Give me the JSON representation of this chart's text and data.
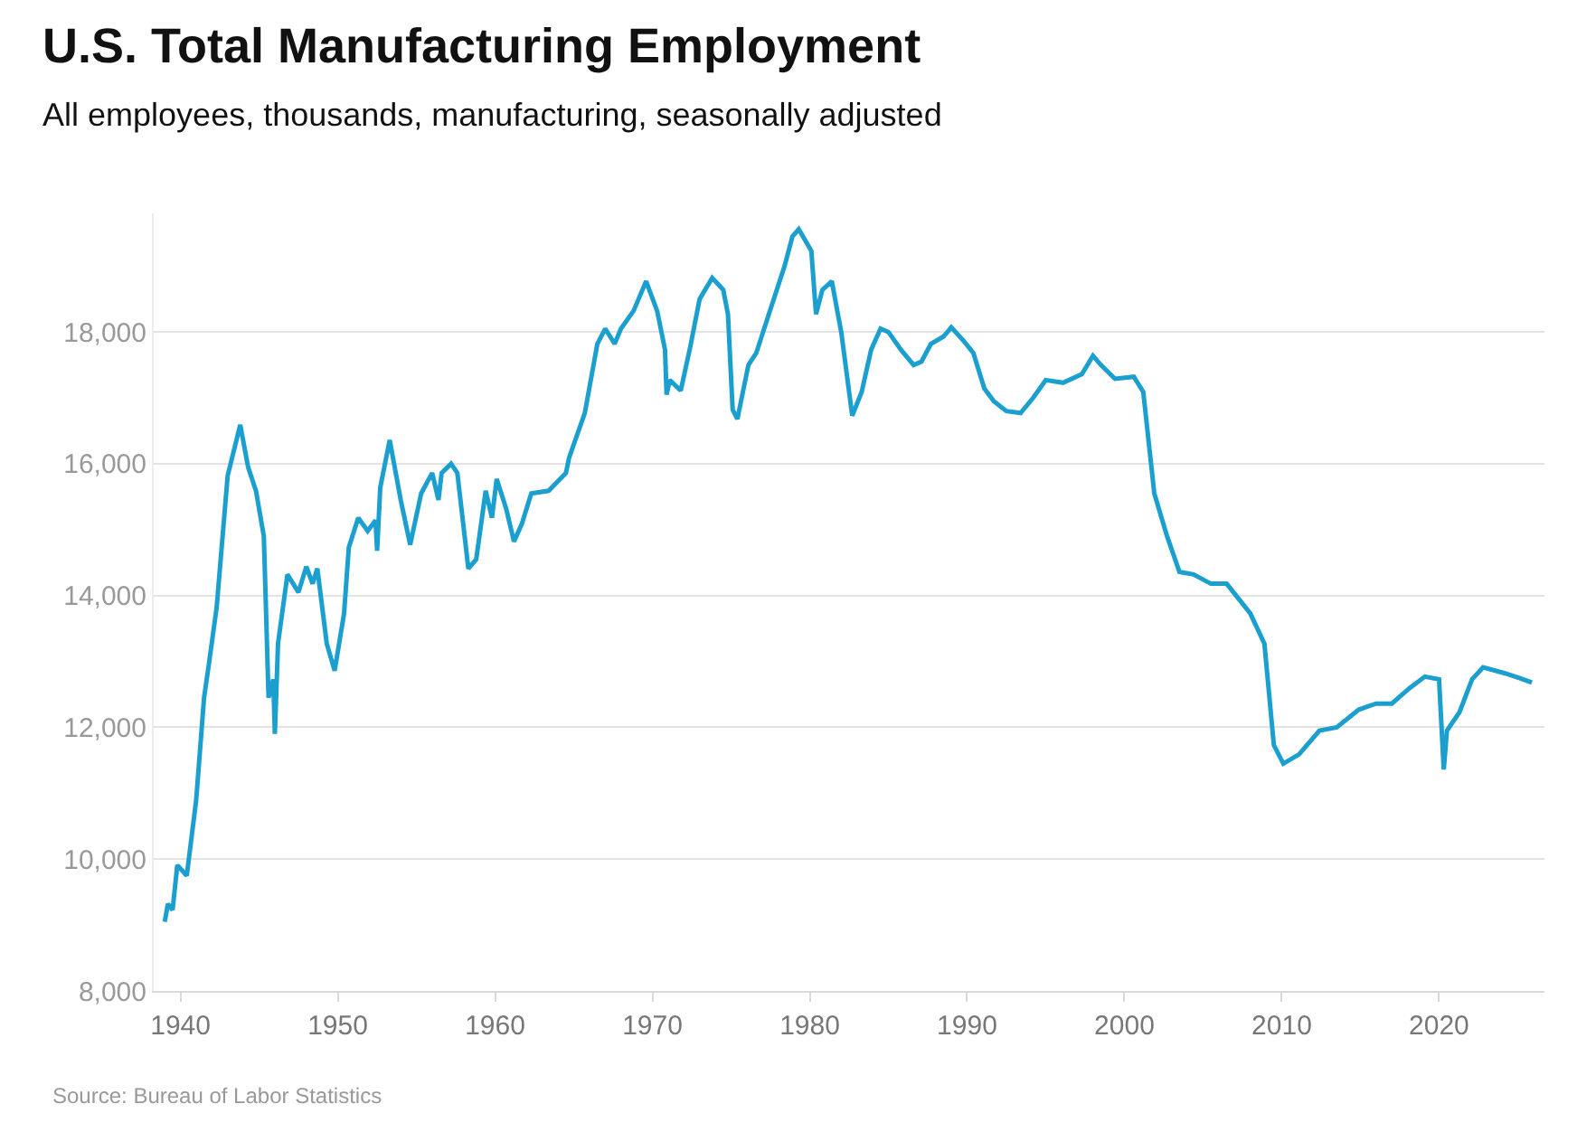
{
  "chart_data": {
    "type": "line",
    "title": "U.S. Total Manufacturing Employment",
    "subtitle": "All employees, thousands, manufacturing, seasonally adjusted",
    "annotations": [
      "Source: Bureau of Labor Statistics"
    ],
    "series": [
      {
        "color": "#1b9fcf",
        "x": [
          1939.0,
          1939.2,
          1939.5,
          1939.8,
          1940.4,
          1941.0,
          1941.5,
          1941.8,
          1942.3,
          1943.0,
          1943.8,
          1944.3,
          1944.8,
          1945.3,
          1945.6,
          1945.9,
          1946.0,
          1946.2,
          1946.8,
          1947.5,
          1948.0,
          1948.4,
          1948.7,
          1949.3,
          1949.8,
          1950.4,
          1950.7,
          1951.3,
          1951.9,
          1952.4,
          1952.5,
          1952.7,
          1953.3,
          1954.0,
          1954.6,
          1955.3,
          1956.0,
          1956.4,
          1956.6,
          1957.2,
          1957.6,
          1958.3,
          1958.8,
          1959.4,
          1959.8,
          1960.1,
          1960.7,
          1961.2,
          1961.7,
          1962.3,
          1963.4,
          1964.5,
          1964.7,
          1965.7,
          1966.5,
          1967.0,
          1967.6,
          1968.0,
          1968.8,
          1969.6,
          1970.3,
          1970.8,
          1970.9,
          1971.1,
          1971.8,
          1972.4,
          1973.0,
          1973.8,
          1974.5,
          1974.8,
          1975.1,
          1975.4,
          1976.1,
          1976.6,
          1977.4,
          1978.4,
          1978.9,
          1979.3,
          1980.1,
          1980.4,
          1980.8,
          1981.4,
          1982.0,
          1982.7,
          1983.3,
          1983.9,
          1984.5,
          1985.0,
          1985.8,
          1986.6,
          1987.1,
          1987.7,
          1988.5,
          1989.0,
          1989.8,
          1990.4,
          1991.1,
          1991.7,
          1992.5,
          1993.4,
          1994.2,
          1995.0,
          1996.1,
          1997.3,
          1998.0,
          1998.5,
          1999.4,
          2000.6,
          2001.2,
          2001.9,
          2002.7,
          2003.5,
          2004.4,
          2005.5,
          2006.5,
          2008.0,
          2008.9,
          2009.5,
          2010.1,
          2011.1,
          2012.4,
          2013.5,
          2014.9,
          2016.0,
          2017.0,
          2018.1,
          2019.1,
          2020.0,
          2020.3,
          2020.5,
          2021.3,
          2022.1,
          2022.8,
          2024.2,
          2025.1,
          2025.9
        ],
        "values": [
          9050,
          9320,
          9230,
          9910,
          9750,
          10900,
          12450,
          12950,
          13820,
          15820,
          16590,
          15950,
          15590,
          14900,
          12450,
          12730,
          11900,
          13270,
          14320,
          14050,
          14440,
          14180,
          14410,
          13270,
          12860,
          13730,
          14730,
          15180,
          14980,
          15140,
          14680,
          15640,
          16360,
          15450,
          14770,
          15550,
          15860,
          15450,
          15860,
          16000,
          15860,
          14410,
          14550,
          15590,
          15180,
          15770,
          15320,
          14820,
          15090,
          15550,
          15590,
          15860,
          16090,
          16770,
          17820,
          18050,
          17820,
          18050,
          18320,
          18770,
          18320,
          17730,
          17050,
          17270,
          17110,
          17770,
          18500,
          18820,
          18640,
          18270,
          16820,
          16680,
          17500,
          17680,
          18270,
          19000,
          19450,
          19560,
          19230,
          18270,
          18640,
          18770,
          18000,
          16730,
          17090,
          17730,
          18050,
          18000,
          17730,
          17500,
          17550,
          17820,
          17930,
          18070,
          17860,
          17680,
          17140,
          16950,
          16800,
          16770,
          17000,
          17270,
          17230,
          17360,
          17640,
          17500,
          17290,
          17320,
          17090,
          15550,
          14910,
          14360,
          14320,
          14180,
          14180,
          13730,
          13270,
          11730,
          11450,
          11590,
          11950,
          12000,
          12270,
          12360,
          12360,
          12590,
          12770,
          12730,
          11360,
          11950,
          12230,
          12730,
          12910,
          12820,
          12750,
          12680
        ]
      }
    ],
    "xlim": [
      1938.3,
      2026.7
    ],
    "xticks": [
      1940,
      1950,
      1960,
      1970,
      1980,
      1990,
      2000,
      2010,
      2020
    ],
    "ylim": [
      8000,
      19800
    ],
    "yticks": [
      {
        "value": 8000,
        "label": "8,000"
      },
      {
        "value": 10000,
        "label": "10,000"
      },
      {
        "value": 12000,
        "label": "12,000"
      },
      {
        "value": 14000,
        "label": "14,000"
      },
      {
        "value": 16000,
        "label": "16,000"
      },
      {
        "value": 18000,
        "label": "18,000"
      }
    ],
    "grid": "y",
    "legend": false,
    "marker": "none",
    "line_style": "solid"
  }
}
